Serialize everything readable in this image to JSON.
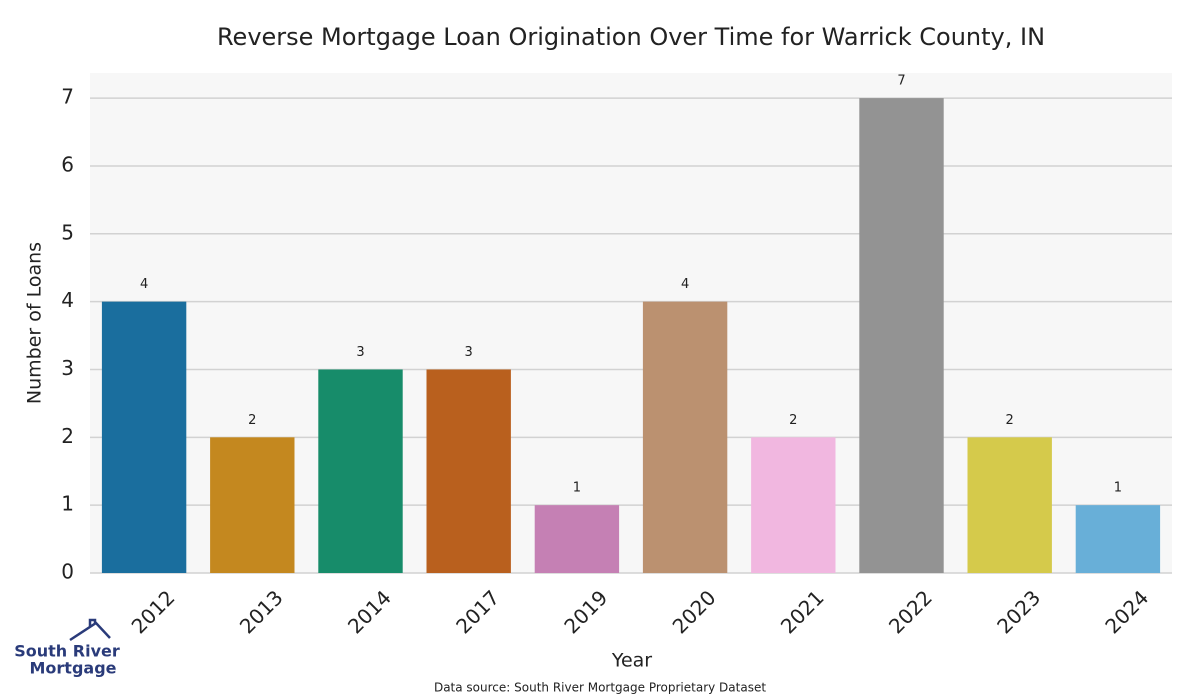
{
  "chart_data": {
    "type": "bar",
    "title": "Reverse Mortgage Loan Origination Over Time for Warrick County, IN",
    "x_label": "Year",
    "y_label": "Number of Loans",
    "categories": [
      "2012",
      "2013",
      "2014",
      "2017",
      "2019",
      "2020",
      "2021",
      "2022",
      "2023",
      "2024"
    ],
    "values": [
      4,
      2,
      3,
      3,
      1,
      4,
      2,
      7,
      2,
      1
    ],
    "colors": [
      "#1a6e9e",
      "#c4881f",
      "#178c6a",
      "#b9601e",
      "#c580b4",
      "#bb9170",
      "#f1b7e0",
      "#939393",
      "#d5ca4b",
      "#68afd8"
    ],
    "ylim": [
      0,
      7.37
    ],
    "yticks": [
      0,
      1,
      2,
      3,
      4,
      5,
      6,
      7
    ],
    "grid": true,
    "source": "Data source: South River Mortgage Proprietary Dataset",
    "logo": [
      "South River",
      "Mortgage"
    ]
  }
}
